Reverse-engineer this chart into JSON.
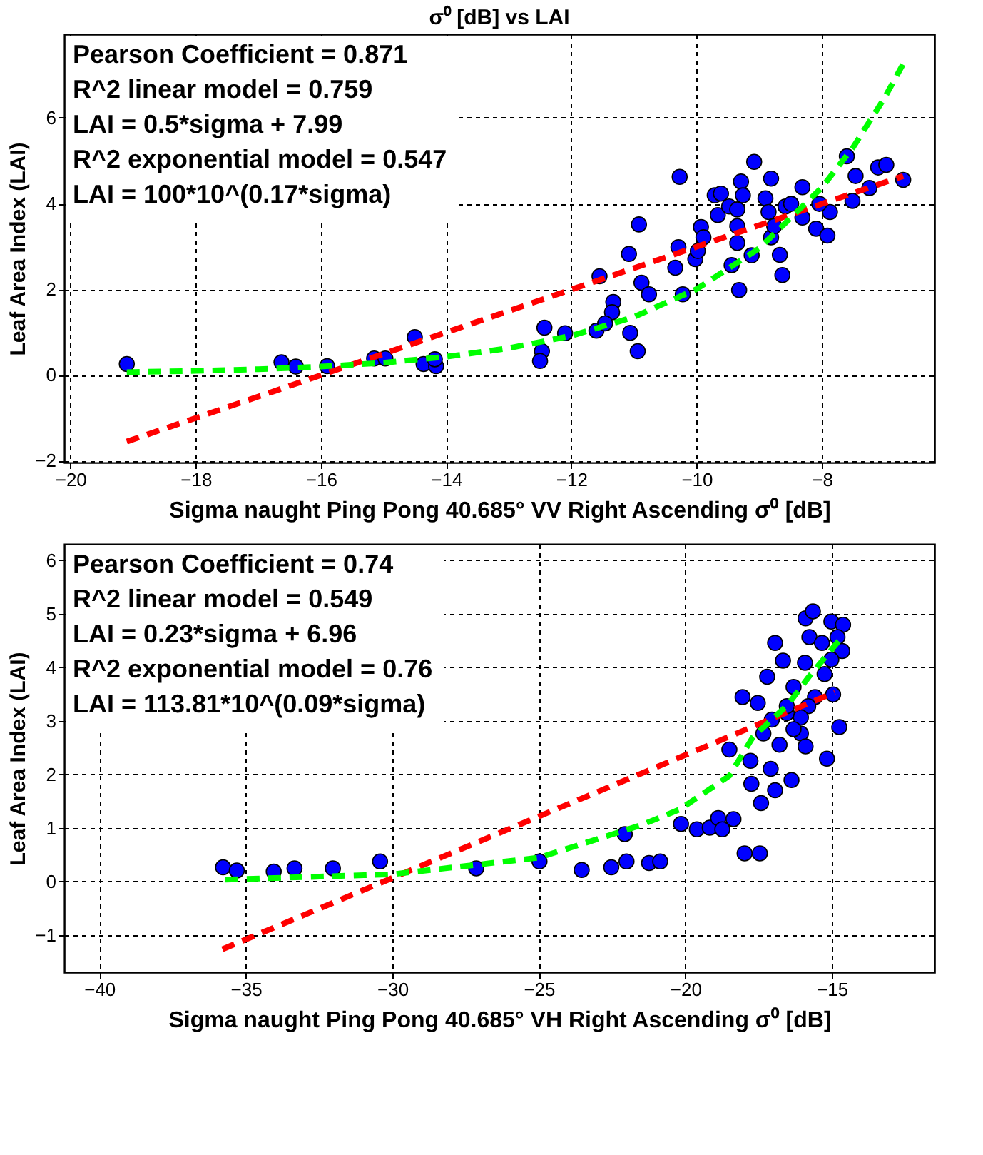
{
  "chart_data": [
    {
      "type": "scatter",
      "title": "σ⁰ [dB] vs LAI",
      "xlabel": "Sigma naught Ping Pong 40.685° VV Right Ascending σ⁰ [dB]",
      "ylabel": "Leaf Area Index (LAI)",
      "annotations": [
        "Pearson Coefficient = 0.871",
        "R^2 linear model = 0.759",
        "LAI = 0.5*sigma + 7.99",
        "R^2 exponential model = 0.547",
        "LAI = 100*10^(0.17*sigma)"
      ],
      "xlim": [
        -20.1,
        -6.2
      ],
      "xticks": [
        -20,
        -18,
        -16,
        -14,
        -12,
        -10,
        -8
      ],
      "ylim": [
        -2.05,
        7.95
      ],
      "yticks": [
        -2,
        0,
        2,
        4,
        6
      ],
      "grid": true,
      "series": [
        {
          "marker": "circle",
          "color": "#0000ff",
          "x": [
            -19.1,
            -16.63,
            -16.4,
            -15.9,
            -15.15,
            -14.97,
            -14.5,
            -14.36,
            -14.16,
            -14.18,
            -12.43,
            -12.47,
            -12.5,
            -12.1,
            -11.6,
            -11.55,
            -11.33,
            -11.35,
            -11.46,
            -11.06,
            -10.94,
            -11.08,
            -10.92,
            -10.88,
            -10.76,
            -10.29,
            -10.34,
            -10.27,
            -10.22,
            -10.02,
            -9.98,
            -9.93,
            -9.89,
            -9.71,
            -9.66,
            -9.61,
            -9.48,
            -9.44,
            -9.35,
            -9.32,
            -9.29,
            -9.26,
            -9.35,
            -9.35,
            -9.12,
            -9.08,
            -8.9,
            -8.85,
            -8.81,
            -8.81,
            -8.76,
            -8.67,
            -8.63,
            -8.58,
            -8.49,
            -8.31,
            -8.31,
            -8.09,
            -7.91,
            -7.87,
            -8.04,
            -7.6,
            -7.51,
            -7.46,
            -7.24,
            -7.1,
            -6.97,
            -6.7
          ],
          "values": [
            0.25,
            0.29,
            0.19,
            0.2,
            0.38,
            0.38,
            0.88,
            0.25,
            0.2,
            0.36,
            1.1,
            0.55,
            0.32,
            0.97,
            1.03,
            2.3,
            1.7,
            1.46,
            1.2,
            0.98,
            0.55,
            2.82,
            3.51,
            2.15,
            1.88,
            2.98,
            2.5,
            4.62,
            1.88,
            2.7,
            2.89,
            3.45,
            3.21,
            4.19,
            3.73,
            4.23,
            3.93,
            2.56,
            3.86,
            1.98,
            4.51,
            4.19,
            3.47,
            3.08,
            2.79,
            4.97,
            4.12,
            3.8,
            4.58,
            3.21,
            3.47,
            2.8,
            2.33,
            3.93,
            3.99,
            4.38,
            3.67,
            3.41,
            3.25,
            3.8,
            3.99,
            5.1,
            4.06,
            4.64,
            4.36,
            4.84,
            4.9,
            4.55
          ]
        },
        {
          "type": "line",
          "color": "#ff0000",
          "line_style": "dashed",
          "x": [
            -19.1,
            -6.7
          ],
          "values": [
            -1.56,
            4.64
          ]
        },
        {
          "type": "line",
          "color": "#00ff00",
          "line_style": "dashed",
          "x": [
            -19.1,
            -18,
            -17,
            -16,
            -15,
            -14,
            -13,
            -12,
            -11,
            -10,
            -9,
            -8,
            -7.5,
            -7,
            -6.7
          ],
          "values": [
            0.06,
            0.09,
            0.13,
            0.19,
            0.28,
            0.42,
            0.62,
            0.91,
            1.35,
            2.0,
            2.95,
            4.37,
            5.31,
            6.46,
            7.26
          ]
        }
      ]
    },
    {
      "type": "scatter",
      "xlabel": "Sigma naught Ping Pong 40.685° VH Right Ascending σ⁰ [dB]",
      "ylabel": "Leaf Area Index (LAI)",
      "annotations": [
        "Pearson Coefficient = 0.74",
        "R^2 linear model = 0.549",
        "LAI = 0.23*sigma + 6.96",
        "R^2 exponential model = 0.76",
        "LAI = 113.81*10^(0.09*sigma)"
      ],
      "xlim": [
        -41.2,
        -11.5
      ],
      "xticks": [
        -40,
        -35,
        -30,
        -25,
        -20,
        -15
      ],
      "ylim": [
        -1.7,
        6.3
      ],
      "yticks": [
        -1,
        0,
        1,
        2,
        3,
        4,
        5,
        6
      ],
      "grid": true,
      "series": [
        {
          "marker": "circle",
          "color": "#0000ff",
          "x": [
            -35.78,
            -35.31,
            -34.05,
            -33.34,
            -32.03,
            -30.42,
            -27.14,
            -24.98,
            -23.54,
            -22.53,
            -22.01,
            -22.07,
            -21.24,
            -20.86,
            -20.15,
            -19.61,
            -19.17,
            -18.88,
            -18.74,
            -18.36,
            -17.98,
            -17.46,
            -18.5,
            -18.05,
            -17.53,
            -17.21,
            -16.94,
            -16.67,
            -17.05,
            -17.34,
            -17.78,
            -17.75,
            -17.09,
            -16.94,
            -17.42,
            -16.38,
            -16.79,
            -16.54,
            -16.31,
            -15.92,
            -15.9,
            -15.65,
            -15.77,
            -15.34,
            -15.02,
            -14.62,
            -14.81,
            -14.65,
            -15.02,
            -15.25,
            -15.58,
            -15.81,
            -16.06,
            -16.06,
            -15.9,
            -14.96,
            -14.75,
            -15.17,
            -16.31,
            -16.54
          ],
          "values": [
            0.26,
            0.2,
            0.18,
            0.24,
            0.24,
            0.37,
            0.24,
            0.37,
            0.21,
            0.26,
            0.37,
            0.88,
            0.34,
            0.37,
            1.07,
            0.97,
            1.0,
            1.18,
            0.97,
            1.16,
            0.52,
            0.52,
            2.46,
            3.44,
            3.33,
            3.82,
            4.45,
            4.12,
            3.02,
            2.76,
            2.25,
            1.82,
            2.1,
            1.7,
            1.46,
            1.89,
            2.55,
            3.14,
            3.63,
            4.08,
            4.91,
            5.04,
            4.56,
            4.45,
            4.85,
            4.79,
            4.56,
            4.3,
            4.14,
            3.87,
            3.44,
            3.27,
            3.06,
            2.76,
            2.52,
            3.49,
            2.88,
            2.29,
            2.84,
            3.27
          ]
        },
        {
          "type": "line",
          "color": "#ff0000",
          "line_style": "dashed",
          "x": [
            -35.8,
            -14.9
          ],
          "values": [
            -1.27,
            3.53
          ]
        },
        {
          "type": "line",
          "color": "#00ff00",
          "line_style": "dashed",
          "x": [
            -35.7,
            -30,
            -25,
            -21.5,
            -20.2,
            -18.5,
            -17.7,
            -16.5,
            -15.8,
            -14.75
          ],
          "values": [
            0.03,
            0.13,
            0.44,
            1.05,
            1.34,
            1.97,
            2.69,
            3.3,
            3.81,
            4.5
          ]
        }
      ]
    }
  ]
}
